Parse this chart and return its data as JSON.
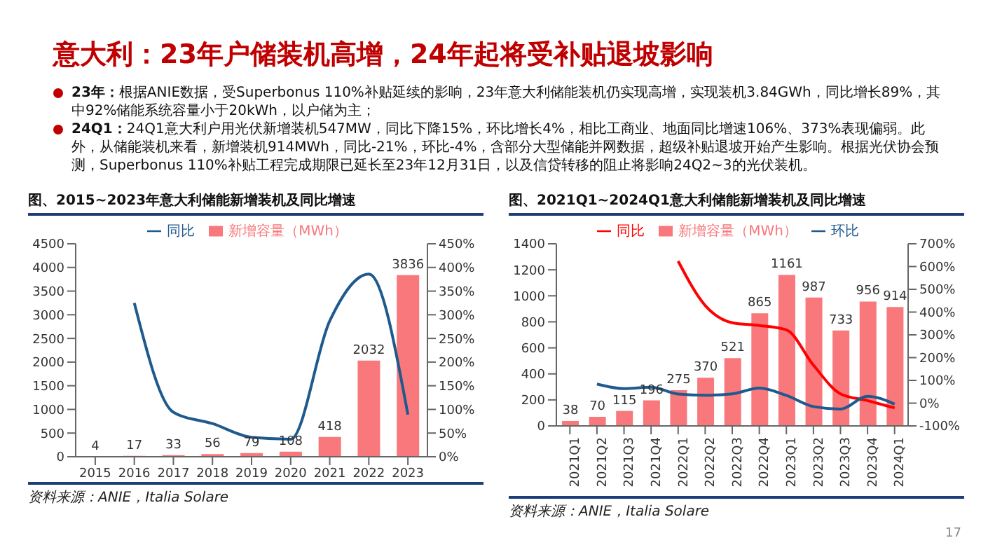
{
  "chart_data": [
    {
      "type": "bar",
      "title": "图、2015~2023年意大利储能新增装机及同比增速",
      "annotations": [
        "意大利：23年户储装机高增，24年起将受补贴退坡影响",
        "23年：根据ANIE数据，受Superbonus 110%补贴延续的影响，23年意大利储能装机仍实现高增，实现装机3.84GWh，同比增长89%，其中92%储能系统容量小于20kWh，以户储为主；",
        "24Q1：24Q1意大利户用光伏新增装机547MW，同比下降15%，环比增长4%，相比工商业、地面同比增速106%、373%表现偏弱。此外，从储能装机来看，新增装机914MWh，同比-21%，环比-4%，含部分大型储能并网数据，超级补贴退坡开始产生影响。根据光伏协会预测，Superbonus 110%补贴工程完成期限已延长至23年12月31日，以及信贷转移的阻止将影响24Q2~3的光伏装机。",
        "资料来源：ANIE，Italia Solare"
      ],
      "categories": [
        "2015",
        "2016",
        "2017",
        "2018",
        "2019",
        "2020",
        "2021",
        "2022",
        "2023"
      ],
      "series": [
        {
          "name": "新增容量（MWh）",
          "color": "#f8787c",
          "values": [
            4,
            17,
            33,
            56,
            79,
            108,
            418,
            2032,
            3836
          ],
          "value_labels": [
            "4",
            "17",
            "33",
            "56",
            "79",
            "108",
            "418",
            "2032",
            "3836"
          ]
        },
        {
          "name": "同比",
          "type": "line",
          "axis": "y2",
          "color": "#1f5a8e",
          "values": [
            null,
            325,
            94,
            70,
            41,
            37,
            287,
            386,
            89
          ]
        }
      ],
      "ylim": [
        0,
        4500
      ],
      "yticks": [
        0,
        500,
        1000,
        1500,
        2000,
        2500,
        3000,
        3500,
        4000,
        4500
      ],
      "y2lim": [
        0,
        450
      ],
      "y2ticks": [
        {
          "value": 0,
          "label": "0%"
        },
        {
          "value": 50,
          "label": "50%"
        },
        {
          "value": 100,
          "label": "100%"
        },
        {
          "value": 150,
          "label": "150%"
        },
        {
          "value": 200,
          "label": "200%"
        },
        {
          "value": 250,
          "label": "250%"
        },
        {
          "value": 300,
          "label": "300%"
        },
        {
          "value": 350,
          "label": "350%"
        },
        {
          "value": 400,
          "label": "400%"
        },
        {
          "value": 450,
          "label": "450%"
        }
      ],
      "legend": "top",
      "grid": false,
      "marker": "none"
    },
    {
      "type": "bar",
      "title": "图、2021Q1~2024Q1意大利储能新增装机及同比增速",
      "annotations": [
        "资料来源：ANIE，Italia Solare",
        "17"
      ],
      "categories": [
        "2021Q1",
        "2021Q2",
        "2021Q3",
        "2021Q4",
        "2022Q1",
        "2022Q2",
        "2022Q3",
        "2022Q4",
        "2023Q1",
        "2023Q2",
        "2023Q3",
        "2023Q4",
        "2024Q1"
      ],
      "series": [
        {
          "name": "新增容量（MWh）",
          "color": "#f8787c",
          "values": [
            38,
            70,
            115,
            196,
            275,
            370,
            521,
            865,
            1161,
            987,
            733,
            956,
            914
          ],
          "value_labels": [
            "38",
            "70",
            "115",
            "196",
            "275",
            "370",
            "521",
            "865",
            "1161",
            "987",
            "733",
            "956",
            "914"
          ]
        },
        {
          "name": "同比",
          "type": "line",
          "axis": "y2",
          "color": "#ff0000",
          "values": [
            null,
            null,
            null,
            null,
            624,
            429,
            353,
            341,
            322,
            167,
            41,
            11,
            -21
          ]
        },
        {
          "name": "环比",
          "type": "line",
          "axis": "y2",
          "color": "#1f5a8e",
          "values": [
            null,
            84,
            64,
            70,
            40,
            35,
            41,
            66,
            34,
            -15,
            -26,
            30,
            -4
          ]
        }
      ],
      "ylim": [
        0,
        1400
      ],
      "yticks": [
        0,
        200,
        400,
        600,
        800,
        1000,
        1200,
        1400
      ],
      "y2lim": [
        -100,
        700
      ],
      "y2ticks": [
        {
          "value": -100,
          "label": "-100%"
        },
        {
          "value": 0,
          "label": "0%"
        },
        {
          "value": 100,
          "label": "100%"
        },
        {
          "value": 200,
          "label": "200%"
        },
        {
          "value": 300,
          "label": "300%"
        },
        {
          "value": 400,
          "label": "400%"
        },
        {
          "value": 500,
          "label": "500%"
        },
        {
          "value": 600,
          "label": "600%"
        },
        {
          "value": 700,
          "label": "700%"
        }
      ],
      "legend": "top",
      "grid": false,
      "marker": "none"
    }
  ]
}
